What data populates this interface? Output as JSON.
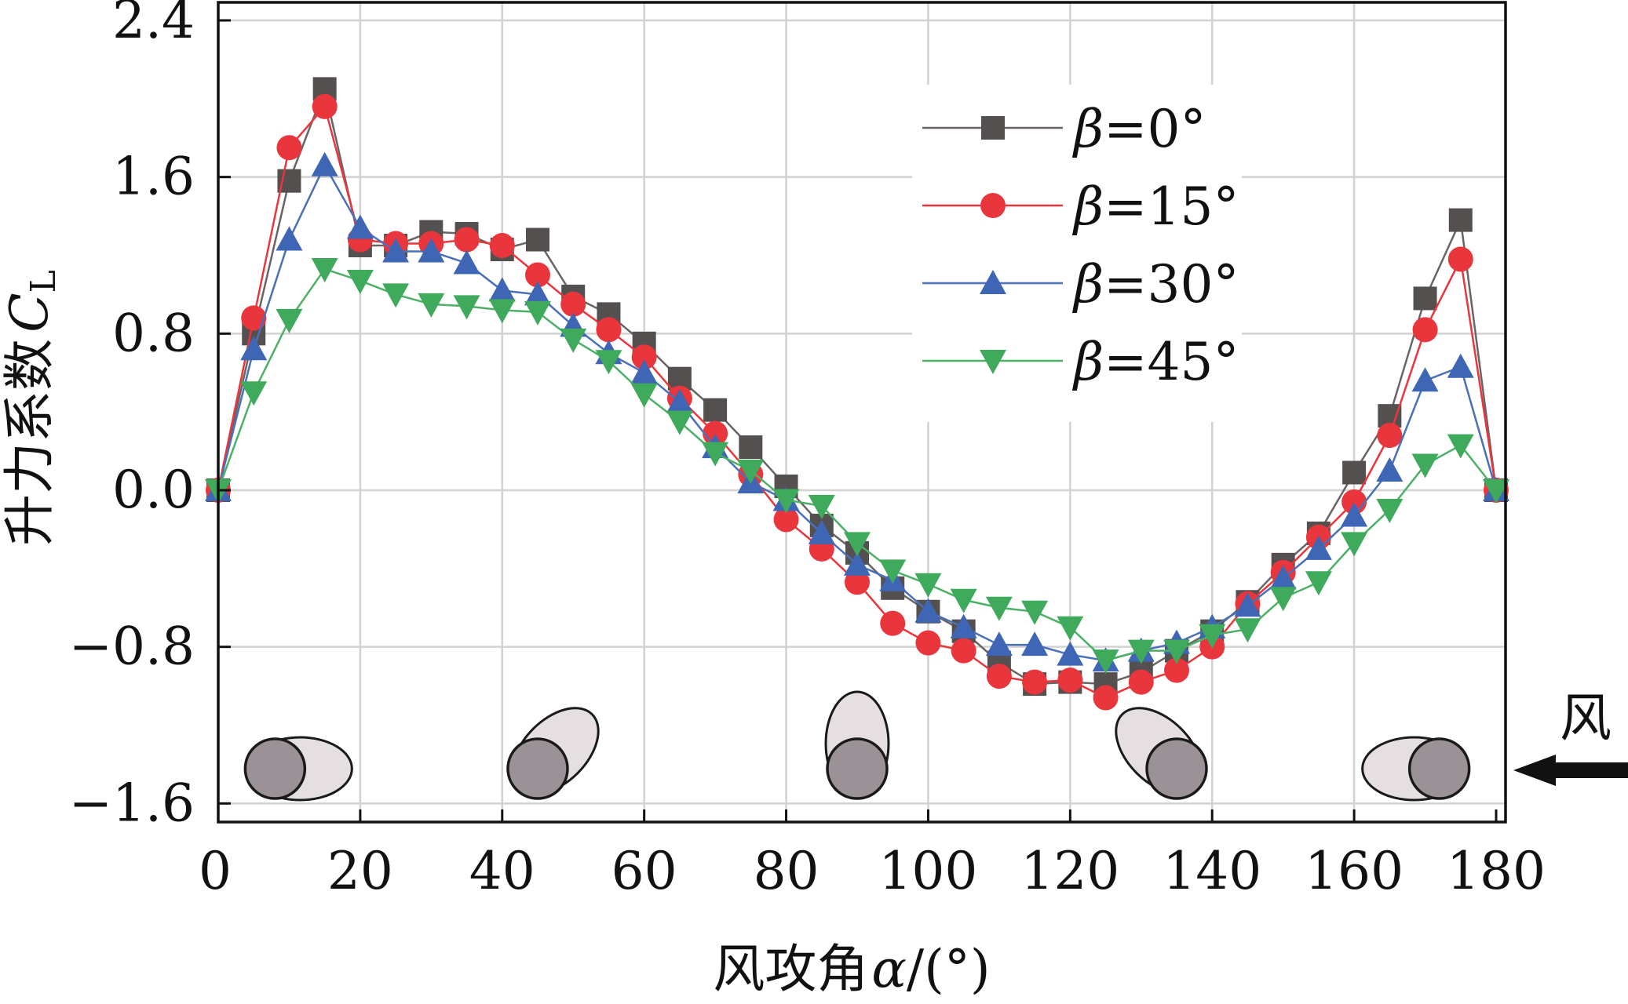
{
  "chart_data": {
    "type": "line",
    "title": "",
    "xlabel": "风攻角α/(°)",
    "ylabel": "升力系数C_L",
    "ylabel_main": "升力系数",
    "ylabel_symbol": "C",
    "ylabel_subscript": "L",
    "xlabel_main": "风攻角",
    "xlabel_symbol": "α",
    "xlabel_unit": "/(°)",
    "xlim": [
      0,
      180
    ],
    "ylim": [
      -1.7,
      2.4
    ],
    "xticks": [
      0,
      20,
      40,
      60,
      80,
      100,
      120,
      140,
      160,
      180
    ],
    "xtick_labels": [
      "0",
      "20",
      "40",
      "60",
      "80",
      "100",
      "120",
      "140",
      "160",
      "180"
    ],
    "yticks": [
      -1.6,
      -0.8,
      0.0,
      0.8,
      1.6,
      2.4
    ],
    "ytick_labels": [
      "−1.6",
      "−0.8",
      "0.0",
      "0.8",
      "1.6",
      "2.4"
    ],
    "grid": true,
    "legend_position": "top-right",
    "x": [
      0,
      5,
      10,
      15,
      20,
      25,
      30,
      35,
      40,
      45,
      50,
      55,
      60,
      65,
      70,
      75,
      80,
      85,
      90,
      95,
      100,
      105,
      110,
      115,
      120,
      125,
      130,
      135,
      140,
      145,
      150,
      155,
      160,
      165,
      170,
      175,
      180
    ],
    "series": [
      {
        "name": "β=0°",
        "beta": "β",
        "rest": "=0°",
        "color": "#555050",
        "line_color": "#6b6464",
        "marker": "square",
        "values": [
          0.0,
          0.8,
          1.58,
          2.05,
          1.25,
          1.25,
          1.32,
          1.31,
          1.23,
          1.28,
          0.99,
          0.9,
          0.75,
          0.57,
          0.41,
          0.22,
          0.02,
          -0.18,
          -0.32,
          -0.5,
          -0.62,
          -0.72,
          -0.88,
          -0.99,
          -0.98,
          -0.99,
          -0.93,
          -0.82,
          -0.72,
          -0.57,
          -0.38,
          -0.22,
          0.09,
          0.38,
          0.98,
          1.38,
          0.0
        ]
      },
      {
        "name": "β=15°",
        "beta": "β",
        "rest": "=15°",
        "color": "#e8363c",
        "line_color": "#e8363c",
        "marker": "circle",
        "values": [
          0.0,
          0.88,
          1.75,
          1.96,
          1.28,
          1.26,
          1.26,
          1.28,
          1.25,
          1.1,
          0.95,
          0.82,
          0.68,
          0.47,
          0.29,
          0.08,
          -0.15,
          -0.3,
          -0.47,
          -0.68,
          -0.78,
          -0.82,
          -0.95,
          -0.98,
          -0.97,
          -1.06,
          -0.98,
          -0.92,
          -0.8,
          -0.58,
          -0.42,
          -0.24,
          -0.06,
          0.28,
          0.82,
          1.18,
          0.0
        ]
      },
      {
        "name": "β=30°",
        "beta": "β",
        "rest": "=30°",
        "color": "#3e66b4",
        "line_color": "#4a70b8",
        "marker": "triangle-up",
        "values": [
          0.0,
          0.72,
          1.28,
          1.66,
          1.34,
          1.22,
          1.22,
          1.16,
          1.02,
          1.0,
          0.84,
          0.7,
          0.6,
          0.45,
          0.22,
          0.04,
          -0.05,
          -0.22,
          -0.38,
          -0.46,
          -0.62,
          -0.7,
          -0.79,
          -0.79,
          -0.84,
          -0.87,
          -0.82,
          -0.78,
          -0.7,
          -0.59,
          -0.45,
          -0.3,
          -0.13,
          0.1,
          0.56,
          0.63,
          0.0
        ]
      },
      {
        "name": "β=45°",
        "beta": "β",
        "rest": "=45°",
        "color": "#3faa5c",
        "line_color": "#4db067",
        "marker": "triangle-down",
        "values": [
          0.0,
          0.5,
          0.87,
          1.13,
          1.07,
          1.0,
          0.95,
          0.94,
          0.92,
          0.91,
          0.77,
          0.66,
          0.49,
          0.35,
          0.19,
          0.1,
          -0.05,
          -0.08,
          -0.27,
          -0.41,
          -0.48,
          -0.56,
          -0.6,
          -0.62,
          -0.7,
          -0.87,
          -0.82,
          -0.82,
          -0.74,
          -0.71,
          -0.55,
          -0.47,
          -0.27,
          -0.1,
          0.13,
          0.23,
          0.0
        ]
      }
    ],
    "annotations": {
      "wind_label": "风",
      "wind_direction": "right-to-left",
      "section_shapes": [
        {
          "alpha": 0
        },
        {
          "alpha": 45
        },
        {
          "alpha": 90
        },
        {
          "alpha": 135
        },
        {
          "alpha": 180
        }
      ]
    }
  }
}
